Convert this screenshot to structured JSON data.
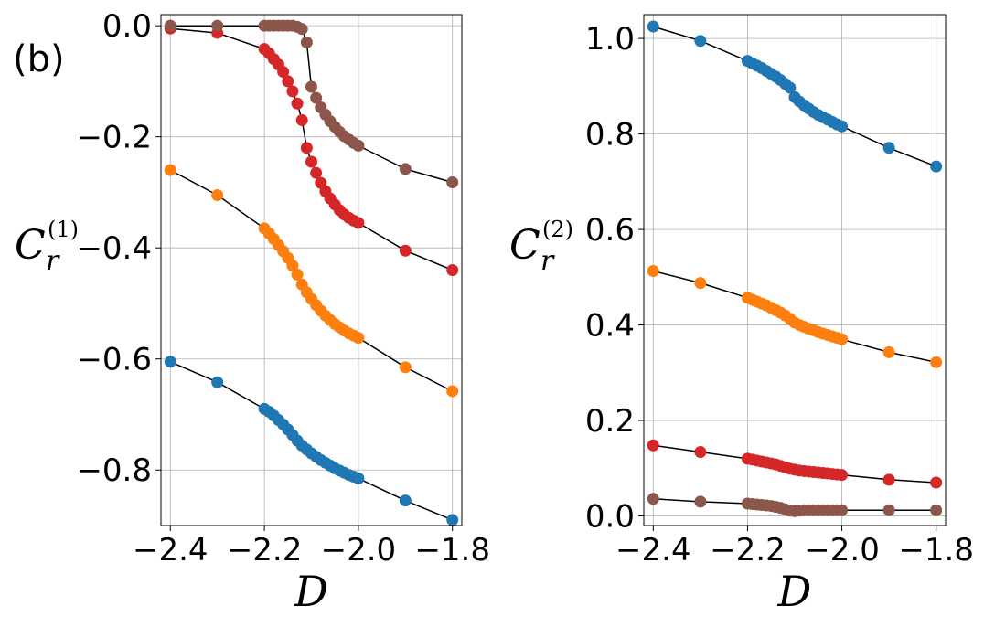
{
  "panel_label": "(b)",
  "chart_data": [
    {
      "type": "line",
      "title": "",
      "xlabel": "D",
      "ylabel": {
        "base": "C",
        "sup": "(1)",
        "sub": "r"
      },
      "xlim": [
        -2.42,
        -1.78
      ],
      "ylim": [
        -0.9,
        0.02
      ],
      "xticks": [
        -2.4,
        -2.2,
        -2.0,
        -1.8
      ],
      "xtick_labels": [
        "−2.4",
        "−2.2",
        "−2.0",
        "−1.8"
      ],
      "yticks": [
        0.0,
        -0.2,
        -0.4,
        -0.6,
        -0.8
      ],
      "ytick_labels": [
        "0.0",
        "−0.2",
        "−0.4",
        "−0.6",
        "−0.8"
      ],
      "grid": true,
      "series": [
        {
          "name": "blue",
          "color": "#1f77b4",
          "x": [
            -2.4,
            -2.3,
            -2.2,
            -2.19,
            -2.18,
            -2.17,
            -2.16,
            -2.15,
            -2.14,
            -2.13,
            -2.12,
            -2.11,
            -2.1,
            -2.09,
            -2.08,
            -2.07,
            -2.06,
            -2.05,
            -2.04,
            -2.03,
            -2.02,
            -2.01,
            -2.0,
            -1.9,
            -1.8
          ],
          "y": [
            -0.605,
            -0.642,
            -0.69,
            -0.695,
            -0.702,
            -0.71,
            -0.718,
            -0.727,
            -0.737,
            -0.747,
            -0.756,
            -0.763,
            -0.77,
            -0.776,
            -0.782,
            -0.787,
            -0.792,
            -0.797,
            -0.801,
            -0.805,
            -0.809,
            -0.812,
            -0.815,
            -0.855,
            -0.89
          ]
        },
        {
          "name": "orange",
          "color": "#ff7f0e",
          "x": [
            -2.4,
            -2.3,
            -2.2,
            -2.19,
            -2.18,
            -2.17,
            -2.16,
            -2.15,
            -2.14,
            -2.13,
            -2.12,
            -2.11,
            -2.1,
            -2.09,
            -2.08,
            -2.07,
            -2.06,
            -2.05,
            -2.04,
            -2.03,
            -2.02,
            -2.01,
            -2.0,
            -1.9,
            -1.8
          ],
          "y": [
            -0.26,
            -0.305,
            -0.365,
            -0.374,
            -0.384,
            -0.395,
            -0.406,
            -0.418,
            -0.432,
            -0.448,
            -0.466,
            -0.48,
            -0.492,
            -0.503,
            -0.513,
            -0.522,
            -0.53,
            -0.537,
            -0.543,
            -0.549,
            -0.554,
            -0.558,
            -0.562,
            -0.615,
            -0.658
          ]
        },
        {
          "name": "red",
          "color": "#d62728",
          "x": [
            -2.4,
            -2.3,
            -2.2,
            -2.19,
            -2.18,
            -2.17,
            -2.16,
            -2.15,
            -2.14,
            -2.13,
            -2.12,
            -2.11,
            -2.1,
            -2.09,
            -2.08,
            -2.07,
            -2.06,
            -2.05,
            -2.04,
            -2.03,
            -2.02,
            -2.01,
            -2.0,
            -1.9,
            -1.8
          ],
          "y": [
            -0.005,
            -0.013,
            -0.042,
            -0.05,
            -0.06,
            -0.07,
            -0.083,
            -0.1,
            -0.118,
            -0.14,
            -0.17,
            -0.22,
            -0.245,
            -0.265,
            -0.283,
            -0.298,
            -0.311,
            -0.322,
            -0.332,
            -0.34,
            -0.346,
            -0.351,
            -0.355,
            -0.405,
            -0.44
          ]
        },
        {
          "name": "brown",
          "color": "#8c564b",
          "x": [
            -2.4,
            -2.3,
            -2.2,
            -2.19,
            -2.18,
            -2.17,
            -2.16,
            -2.15,
            -2.14,
            -2.13,
            -2.12,
            -2.11,
            -2.1,
            -2.09,
            -2.08,
            -2.07,
            -2.06,
            -2.05,
            -2.04,
            -2.03,
            -2.02,
            -2.01,
            -2.0,
            -1.9,
            -1.8
          ],
          "y": [
            0.0,
            0.0,
            0.0,
            0.0,
            0.0,
            0.0,
            0.0,
            0.0,
            0.0,
            -0.002,
            -0.006,
            -0.03,
            -0.11,
            -0.13,
            -0.147,
            -0.16,
            -0.172,
            -0.182,
            -0.191,
            -0.199,
            -0.205,
            -0.211,
            -0.216,
            -0.258,
            -0.282
          ]
        }
      ]
    },
    {
      "type": "line",
      "title": "",
      "xlabel": "D",
      "ylabel": {
        "base": "C",
        "sup": "(2)",
        "sub": "r"
      },
      "xlim": [
        -2.42,
        -1.78
      ],
      "ylim": [
        -0.02,
        1.05
      ],
      "xticks": [
        -2.4,
        -2.2,
        -2.0,
        -1.8
      ],
      "xtick_labels": [
        "−2.4",
        "−2.2",
        "−2.0",
        "−1.8"
      ],
      "yticks": [
        0.0,
        0.2,
        0.4,
        0.6,
        0.8,
        1.0
      ],
      "ytick_labels": [
        "0.0",
        "0.2",
        "0.4",
        "0.6",
        "0.8",
        "1.0"
      ],
      "grid": true,
      "series": [
        {
          "name": "blue",
          "color": "#1f77b4",
          "x": [
            -2.4,
            -2.3,
            -2.2,
            -2.19,
            -2.18,
            -2.17,
            -2.16,
            -2.15,
            -2.14,
            -2.13,
            -2.12,
            -2.11,
            -2.1,
            -2.09,
            -2.08,
            -2.07,
            -2.06,
            -2.05,
            -2.04,
            -2.03,
            -2.02,
            -2.01,
            -2.0,
            -1.9,
            -1.8
          ],
          "y": [
            1.025,
            0.995,
            0.953,
            0.948,
            0.943,
            0.938,
            0.932,
            0.926,
            0.92,
            0.913,
            0.905,
            0.897,
            0.877,
            0.868,
            0.86,
            0.853,
            0.846,
            0.84,
            0.835,
            0.83,
            0.825,
            0.82,
            0.816,
            0.771,
            0.732
          ]
        },
        {
          "name": "orange",
          "color": "#ff7f0e",
          "x": [
            -2.4,
            -2.3,
            -2.2,
            -2.19,
            -2.18,
            -2.17,
            -2.16,
            -2.15,
            -2.14,
            -2.13,
            -2.12,
            -2.11,
            -2.1,
            -2.09,
            -2.08,
            -2.07,
            -2.06,
            -2.05,
            -2.04,
            -2.03,
            -2.02,
            -2.01,
            -2.0,
            -1.9,
            -1.8
          ],
          "y": [
            0.513,
            0.488,
            0.457,
            0.453,
            0.449,
            0.445,
            0.441,
            0.436,
            0.431,
            0.426,
            0.42,
            0.413,
            0.405,
            0.4,
            0.396,
            0.392,
            0.389,
            0.385,
            0.382,
            0.379,
            0.376,
            0.373,
            0.37,
            0.343,
            0.322
          ]
        },
        {
          "name": "red",
          "color": "#d62728",
          "x": [
            -2.4,
            -2.3,
            -2.2,
            -2.19,
            -2.18,
            -2.17,
            -2.16,
            -2.15,
            -2.14,
            -2.13,
            -2.12,
            -2.11,
            -2.1,
            -2.09,
            -2.08,
            -2.07,
            -2.06,
            -2.05,
            -2.04,
            -2.03,
            -2.02,
            -2.01,
            -2.0,
            -1.9,
            -1.8
          ],
          "y": [
            0.148,
            0.134,
            0.12,
            0.118,
            0.116,
            0.114,
            0.112,
            0.11,
            0.108,
            0.105,
            0.102,
            0.099,
            0.097,
            0.095,
            0.094,
            0.093,
            0.092,
            0.091,
            0.09,
            0.089,
            0.088,
            0.087,
            0.086,
            0.076,
            0.07
          ]
        },
        {
          "name": "brown",
          "color": "#8c564b",
          "x": [
            -2.4,
            -2.3,
            -2.2,
            -2.19,
            -2.18,
            -2.17,
            -2.16,
            -2.15,
            -2.14,
            -2.13,
            -2.12,
            -2.11,
            -2.1,
            -2.09,
            -2.08,
            -2.07,
            -2.06,
            -2.05,
            -2.04,
            -2.03,
            -2.02,
            -2.01,
            -2.0,
            -1.9,
            -1.8
          ],
          "y": [
            0.036,
            0.03,
            0.026,
            0.025,
            0.024,
            0.023,
            0.022,
            0.021,
            0.019,
            0.017,
            0.014,
            0.011,
            0.01,
            0.011,
            0.012,
            0.012,
            0.012,
            0.012,
            0.012,
            0.012,
            0.012,
            0.012,
            0.012,
            0.012,
            0.012
          ]
        }
      ]
    }
  ]
}
